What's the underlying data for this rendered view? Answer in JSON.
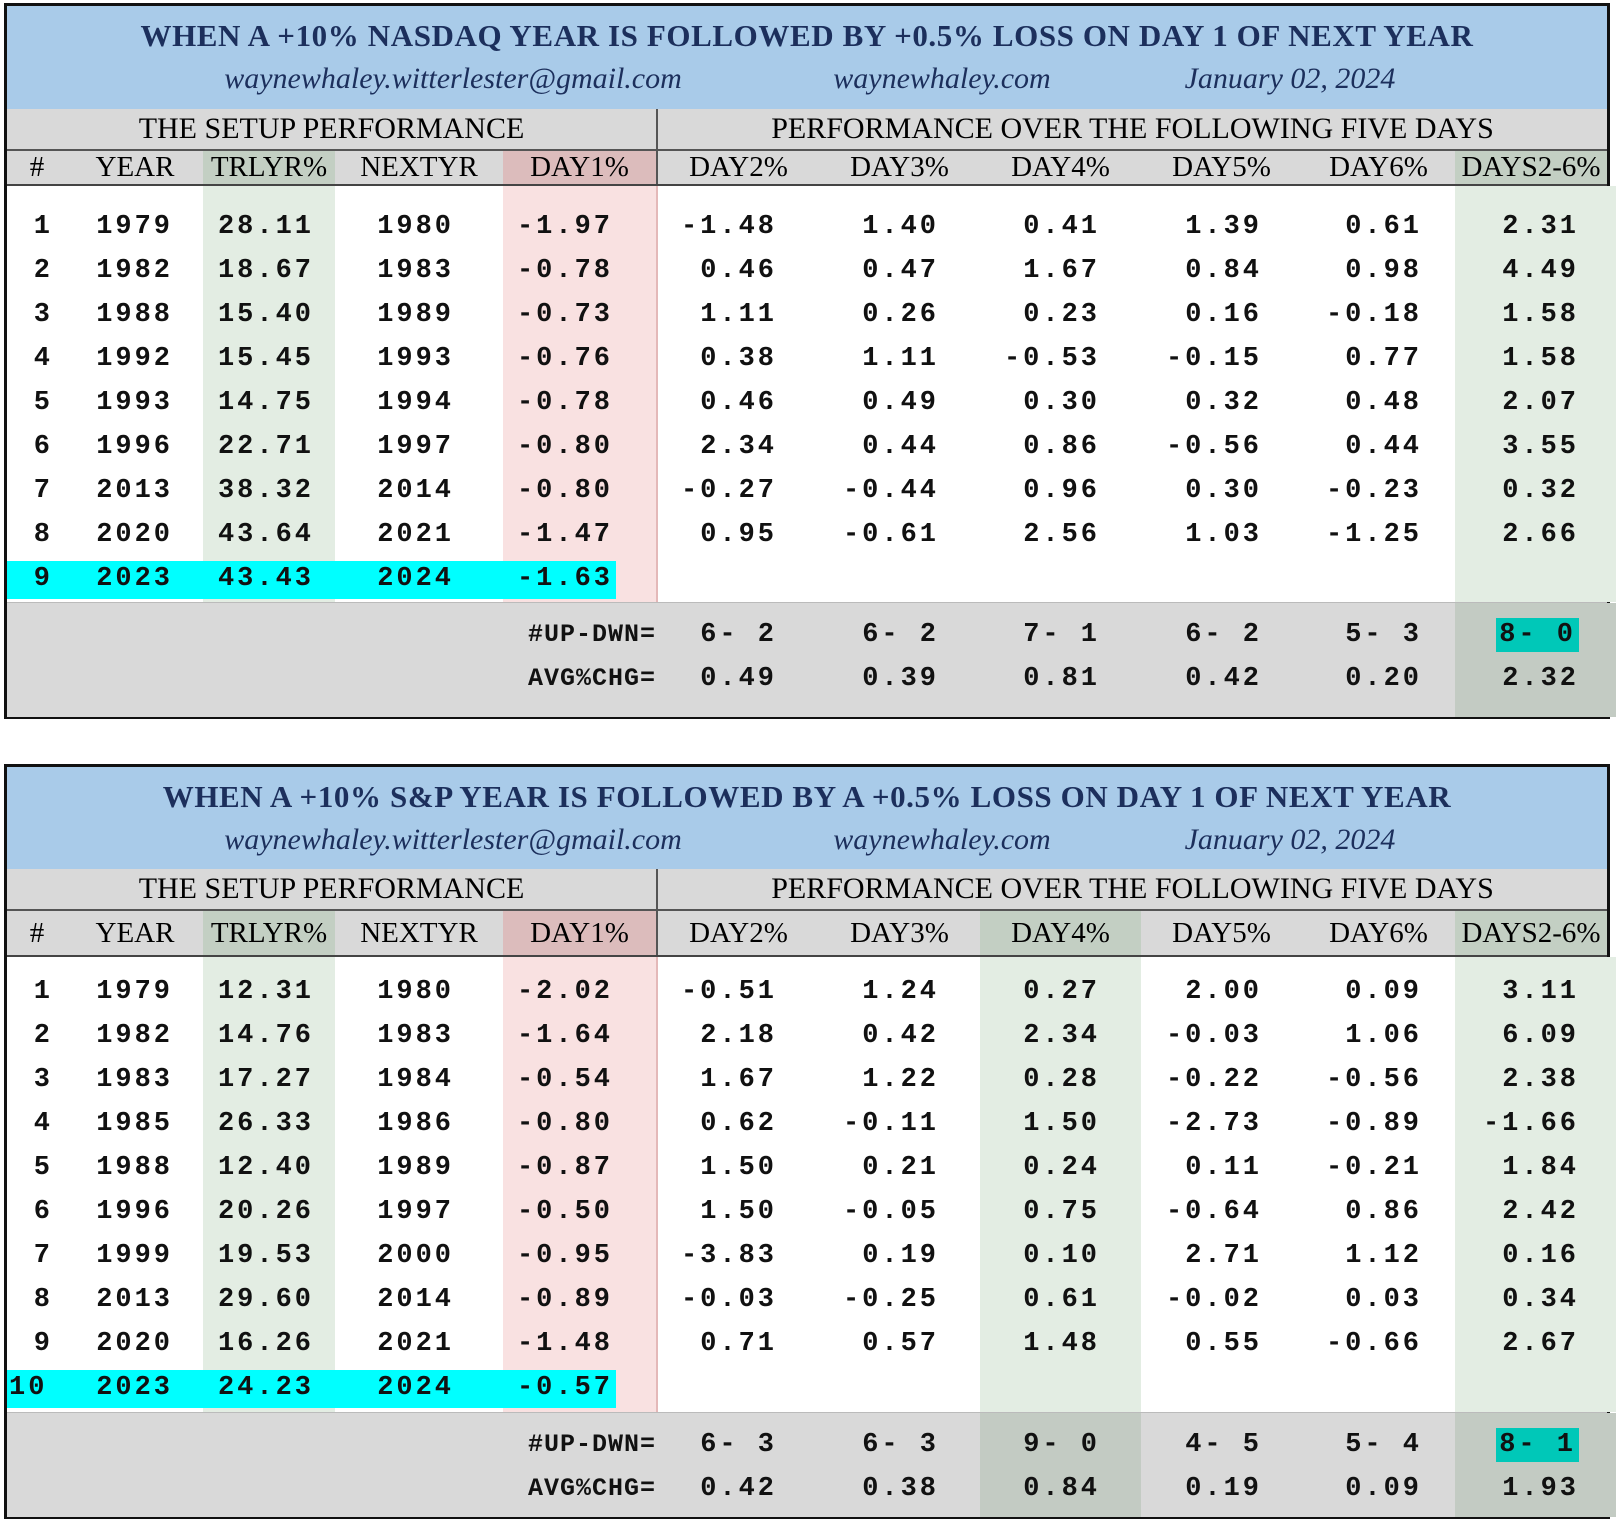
{
  "colors": {
    "title_band": "#a9cbe9",
    "title_text": "#1c2f5c",
    "green_col": "#e3ede3",
    "pink_col": "#f9e1e1",
    "highlight": "#00ffff",
    "teal": "#00c8b8"
  },
  "tables": [
    {
      "title": "WHEN A +10% NASDAQ YEAR IS FOLLOWED BY +0.5% LOSS ON DAY 1 OF NEXT YEAR",
      "email": "waynewhaley.witterlester@gmail.com",
      "site": "waynewhaley.com",
      "date": "January 02, 2024",
      "setup_header": "THE SETUP PERFORMANCE",
      "perf_header": "PERFORMANCE OVER THE FOLLOWING FIVE DAYS",
      "columns": [
        "#",
        "YEAR",
        "TRLYR%",
        "NEXTYR",
        "DAY1%",
        "DAY2%",
        "DAY3%",
        "DAY4%",
        "DAY5%",
        "DAY6%",
        "DAYS2-6%"
      ],
      "rows": [
        [
          "1",
          "1979",
          "28.11",
          "1980",
          "-1.97",
          "-1.48",
          "1.40",
          "0.41",
          "1.39",
          "0.61",
          "2.31"
        ],
        [
          "2",
          "1982",
          "18.67",
          "1983",
          "-0.78",
          "0.46",
          "0.47",
          "1.67",
          "0.84",
          "0.98",
          "4.49"
        ],
        [
          "3",
          "1988",
          "15.40",
          "1989",
          "-0.73",
          "1.11",
          "0.26",
          "0.23",
          "0.16",
          "-0.18",
          "1.58"
        ],
        [
          "4",
          "1992",
          "15.45",
          "1993",
          "-0.76",
          "0.38",
          "1.11",
          "-0.53",
          "-0.15",
          "0.77",
          "1.58"
        ],
        [
          "5",
          "1993",
          "14.75",
          "1994",
          "-0.78",
          "0.46",
          "0.49",
          "0.30",
          "0.32",
          "0.48",
          "2.07"
        ],
        [
          "6",
          "1996",
          "22.71",
          "1997",
          "-0.80",
          "2.34",
          "0.44",
          "0.86",
          "-0.56",
          "0.44",
          "3.55"
        ],
        [
          "7",
          "2013",
          "38.32",
          "2014",
          "-0.80",
          "-0.27",
          "-0.44",
          "0.96",
          "0.30",
          "-0.23",
          "0.32"
        ],
        [
          "8",
          "2020",
          "43.64",
          "2021",
          "-1.47",
          "0.95",
          "-0.61",
          "2.56",
          "1.03",
          "-1.25",
          "2.66"
        ],
        [
          "9",
          "2023",
          "43.43",
          "2024",
          "-1.63",
          "",
          "",
          "",
          "",
          "",
          ""
        ]
      ],
      "highlight_row": 8,
      "green_columns": [
        2,
        10
      ],
      "summary": {
        "updown_label": "#UP-DWN=",
        "updown": [
          "6- 2",
          "6- 2",
          "7- 1",
          "6- 2",
          "5- 3",
          "8- 0"
        ],
        "avg_label": "AVG%CHG=",
        "avg": [
          "0.49",
          "0.39",
          "0.81",
          "0.42",
          "0.20",
          "2.32"
        ]
      }
    },
    {
      "title": "WHEN A +10% S&P YEAR IS FOLLOWED BY A +0.5% LOSS ON DAY 1 OF NEXT YEAR",
      "email": "waynewhaley.witterlester@gmail.com",
      "site": "waynewhaley.com",
      "date": "January 02, 2024",
      "setup_header": "THE SETUP PERFORMANCE",
      "perf_header": "PERFORMANCE OVER THE FOLLOWING FIVE DAYS",
      "columns": [
        "#",
        "YEAR",
        "TRLYR%",
        "NEXTYR",
        "DAY1%",
        "DAY2%",
        "DAY3%",
        "DAY4%",
        "DAY5%",
        "DAY6%",
        "DAYS2-6%"
      ],
      "rows": [
        [
          "1",
          "1979",
          "12.31",
          "1980",
          "-2.02",
          "-0.51",
          "1.24",
          "0.27",
          "2.00",
          "0.09",
          "3.11"
        ],
        [
          "2",
          "1982",
          "14.76",
          "1983",
          "-1.64",
          "2.18",
          "0.42",
          "2.34",
          "-0.03",
          "1.06",
          "6.09"
        ],
        [
          "3",
          "1983",
          "17.27",
          "1984",
          "-0.54",
          "1.67",
          "1.22",
          "0.28",
          "-0.22",
          "-0.56",
          "2.38"
        ],
        [
          "4",
          "1985",
          "26.33",
          "1986",
          "-0.80",
          "0.62",
          "-0.11",
          "1.50",
          "-2.73",
          "-0.89",
          "-1.66"
        ],
        [
          "5",
          "1988",
          "12.40",
          "1989",
          "-0.87",
          "1.50",
          "0.21",
          "0.24",
          "0.11",
          "-0.21",
          "1.84"
        ],
        [
          "6",
          "1996",
          "20.26",
          "1997",
          "-0.50",
          "1.50",
          "-0.05",
          "0.75",
          "-0.64",
          "0.86",
          "2.42"
        ],
        [
          "7",
          "1999",
          "19.53",
          "2000",
          "-0.95",
          "-3.83",
          "0.19",
          "0.10",
          "2.71",
          "1.12",
          "0.16"
        ],
        [
          "8",
          "2013",
          "29.60",
          "2014",
          "-0.89",
          "-0.03",
          "-0.25",
          "0.61",
          "-0.02",
          "0.03",
          "0.34"
        ],
        [
          "9",
          "2020",
          "16.26",
          "2021",
          "-1.48",
          "0.71",
          "0.57",
          "1.48",
          "0.55",
          "-0.66",
          "2.67"
        ],
        [
          "10",
          "2023",
          "24.23",
          "2024",
          "-0.57",
          "",
          "",
          "",
          "",
          "",
          ""
        ]
      ],
      "highlight_row": 9,
      "green_columns": [
        2,
        7,
        10
      ],
      "summary": {
        "updown_label": "#UP-DWN=",
        "updown": [
          "6- 3",
          "6- 3",
          "9- 0",
          "4- 5",
          "5- 4",
          "8- 1"
        ],
        "avg_label": "AVG%CHG=",
        "avg": [
          "0.42",
          "0.38",
          "0.84",
          "0.19",
          "0.09",
          "1.93"
        ]
      }
    }
  ]
}
